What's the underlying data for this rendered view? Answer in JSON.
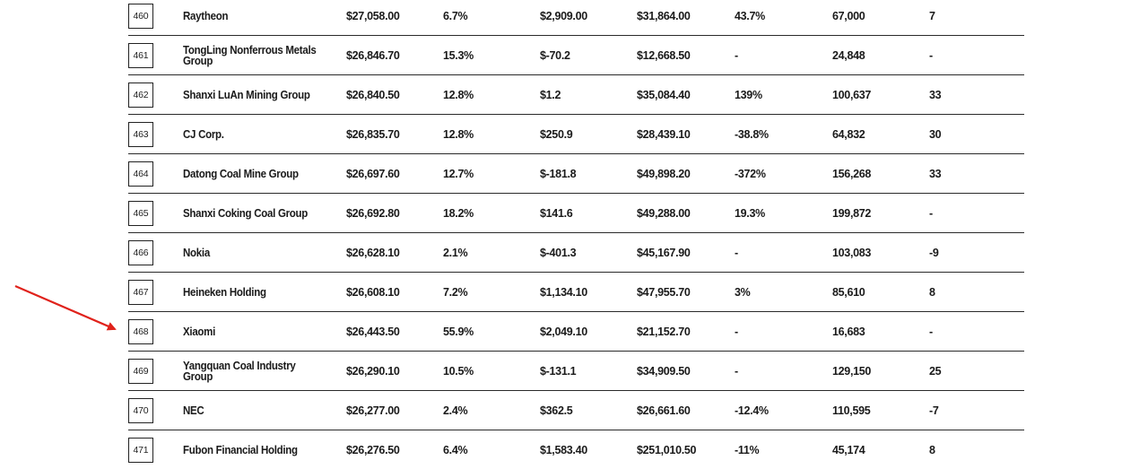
{
  "table": {
    "rows": [
      {
        "rank": "460",
        "company": "Raytheon",
        "revenue": "$27,058.00",
        "revenue_change": "6.7%",
        "profit": "$2,909.00",
        "assets": "$31,864.00",
        "profit_change": "43.7%",
        "employees": "67,000",
        "rank_change": "7"
      },
      {
        "rank": "461",
        "company": "TongLing Nonferrous Metals Group",
        "revenue": "$26,846.70",
        "revenue_change": "15.3%",
        "profit": "$-70.2",
        "assets": "$12,668.50",
        "profit_change": "-",
        "employees": "24,848",
        "rank_change": "-"
      },
      {
        "rank": "462",
        "company": "Shanxi LuAn Mining Group",
        "revenue": "$26,840.50",
        "revenue_change": "12.8%",
        "profit": "$1.2",
        "assets": "$35,084.40",
        "profit_change": "139%",
        "employees": "100,637",
        "rank_change": "33"
      },
      {
        "rank": "463",
        "company": "CJ Corp.",
        "revenue": "$26,835.70",
        "revenue_change": "12.8%",
        "profit": "$250.9",
        "assets": "$28,439.10",
        "profit_change": "-38.8%",
        "employees": "64,832",
        "rank_change": "30"
      },
      {
        "rank": "464",
        "company": "Datong Coal Mine Group",
        "revenue": "$26,697.60",
        "revenue_change": "12.7%",
        "profit": "$-181.8",
        "assets": "$49,898.20",
        "profit_change": "-372%",
        "employees": "156,268",
        "rank_change": "33"
      },
      {
        "rank": "465",
        "company": "Shanxi Coking Coal Group",
        "revenue": "$26,692.80",
        "revenue_change": "18.2%",
        "profit": "$141.6",
        "assets": "$49,288.00",
        "profit_change": "19.3%",
        "employees": "199,872",
        "rank_change": "-"
      },
      {
        "rank": "466",
        "company": "Nokia",
        "revenue": "$26,628.10",
        "revenue_change": "2.1%",
        "profit": "$-401.3",
        "assets": "$45,167.90",
        "profit_change": "-",
        "employees": "103,083",
        "rank_change": "-9"
      },
      {
        "rank": "467",
        "company": "Heineken Holding",
        "revenue": "$26,608.10",
        "revenue_change": "7.2%",
        "profit": "$1,134.10",
        "assets": "$47,955.70",
        "profit_change": "3%",
        "employees": "85,610",
        "rank_change": "8"
      },
      {
        "rank": "468",
        "company": "Xiaomi",
        "revenue": "$26,443.50",
        "revenue_change": "55.9%",
        "profit": "$2,049.10",
        "assets": "$21,152.70",
        "profit_change": "-",
        "employees": "16,683",
        "rank_change": "-"
      },
      {
        "rank": "469",
        "company": "Yangquan Coal Industry Group",
        "revenue": "$26,290.10",
        "revenue_change": "10.5%",
        "profit": "$-131.1",
        "assets": "$34,909.50",
        "profit_change": "-",
        "employees": "129,150",
        "rank_change": "25"
      },
      {
        "rank": "470",
        "company": "NEC",
        "revenue": "$26,277.00",
        "revenue_change": "2.4%",
        "profit": "$362.5",
        "assets": "$26,661.60",
        "profit_change": "-12.4%",
        "employees": "110,595",
        "rank_change": "-7"
      },
      {
        "rank": "471",
        "company": "Fubon Financial Holding",
        "revenue": "$26,276.50",
        "revenue_change": "6.4%",
        "profit": "$1,583.40",
        "assets": "$251,010.50",
        "profit_change": "-11%",
        "employees": "45,174",
        "rank_change": "8"
      }
    ]
  },
  "annotation": {
    "pointer": "red-arrow",
    "target_rank": "468",
    "color": "#e0221b"
  }
}
